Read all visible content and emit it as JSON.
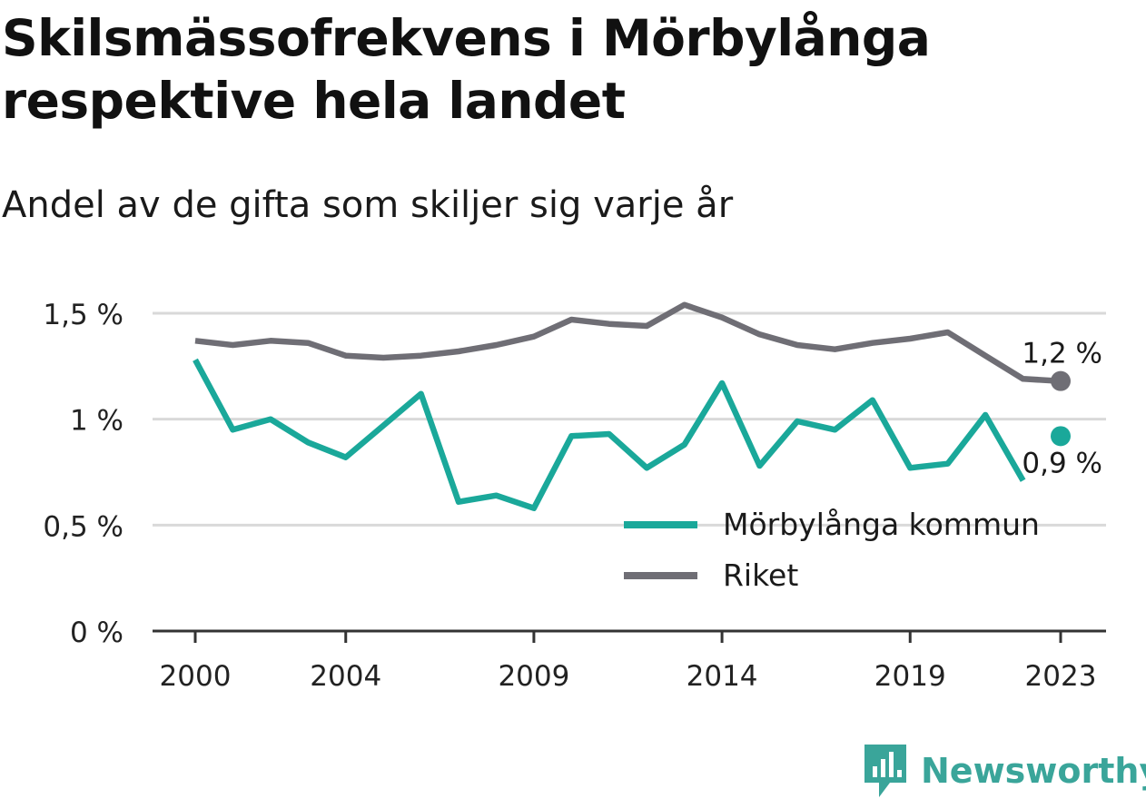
{
  "title": "Skilsmässofrekvens i Mörbylånga respektive hela landet",
  "subtitle": "Andel av de gifta som skiljer sig varje år",
  "brand": {
    "name": "Newsworthy",
    "color": "#3aa59a",
    "icon": "newsworthy-logo-icon"
  },
  "colors": {
    "grid": "#d9d9d9",
    "axis": "#333333",
    "text": "#222222"
  },
  "chart_data": {
    "type": "line",
    "x": [
      2000,
      2001,
      2002,
      2003,
      2004,
      2005,
      2006,
      2007,
      2008,
      2009,
      2010,
      2011,
      2012,
      2013,
      2014,
      2015,
      2016,
      2017,
      2018,
      2019,
      2020,
      2021,
      2022,
      2023
    ],
    "x_tick_values": [
      2000,
      2004,
      2009,
      2014,
      2019,
      2023
    ],
    "x_tick_labels": [
      "2000",
      "2004",
      "2009",
      "2014",
      "2019",
      "2023"
    ],
    "y_tick_values": [
      0,
      0.5,
      1,
      1.5
    ],
    "y_tick_labels": [
      "0 %",
      "0,5 %",
      "1 %",
      "1,5 %"
    ],
    "xlim": [
      1999,
      2024
    ],
    "ylim": [
      0,
      1.6
    ],
    "grid": true,
    "legend_position": "bottom-right",
    "series": [
      {
        "name": "Mörbylånga kommun",
        "color": "#1aa89a",
        "values": [
          1.28,
          0.95,
          1.0,
          0.89,
          0.82,
          0.97,
          1.12,
          0.61,
          0.64,
          0.58,
          0.92,
          0.93,
          0.77,
          0.88,
          1.17,
          0.78,
          0.99,
          0.95,
          1.09,
          0.77,
          0.79,
          1.02,
          0.71,
          0.92
        ],
        "end_label": "0,9 %",
        "end_marker": "dot-detached"
      },
      {
        "name": "Riket",
        "color": "#6f6e75",
        "values": [
          1.37,
          1.35,
          1.37,
          1.36,
          1.3,
          1.29,
          1.3,
          1.32,
          1.35,
          1.39,
          1.47,
          1.45,
          1.44,
          1.54,
          1.48,
          1.4,
          1.35,
          1.33,
          1.36,
          1.38,
          1.41,
          1.3,
          1.19,
          1.18
        ],
        "end_label": "1,2 %",
        "end_marker": "dot"
      }
    ]
  }
}
